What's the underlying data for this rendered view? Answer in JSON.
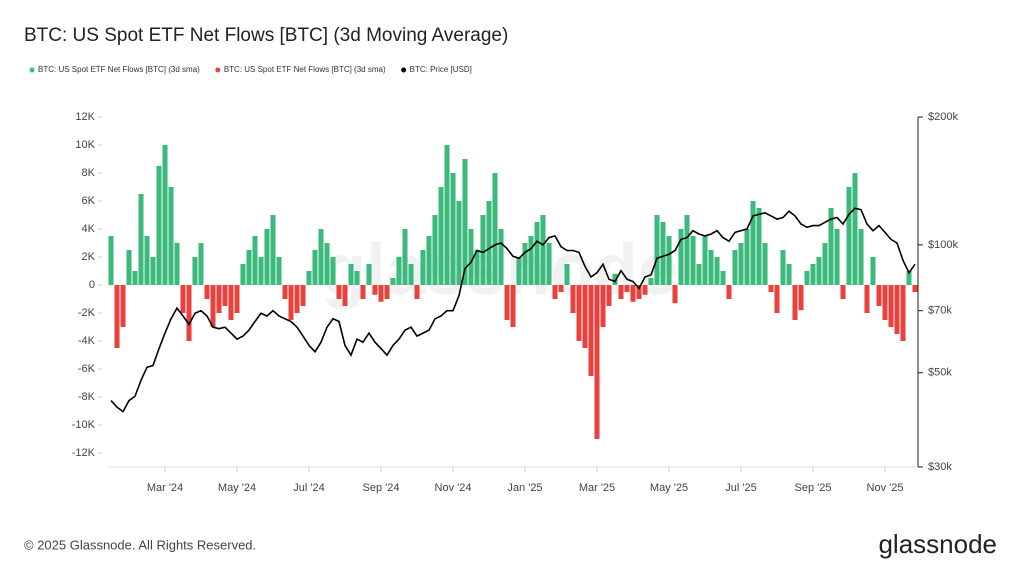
{
  "chart_data": {
    "type": "bar",
    "title": "BTC: US Spot ETF Net Flows [BTC] (3d Moving Average)",
    "watermark": "glassnode",
    "footer": "© 2025 Glassnode. All Rights Reserved.",
    "brand": "glassnode",
    "categories": [
      null,
      null,
      null,
      null,
      null,
      null,
      null,
      null,
      null,
      null,
      null,
      null,
      null,
      null,
      null,
      null,
      null,
      null,
      null,
      null,
      null,
      null,
      null,
      null,
      null,
      null,
      null,
      null,
      null,
      null,
      null,
      null,
      null,
      null,
      null,
      null,
      null,
      null,
      null,
      null,
      null,
      null,
      null,
      null,
      null,
      null,
      null,
      null,
      null,
      null,
      null,
      null,
      null,
      null,
      null,
      null,
      null,
      null,
      null,
      null,
      null,
      null,
      null,
      null,
      null,
      null,
      null,
      null,
      null,
      null,
      null,
      null,
      null,
      null,
      null,
      null,
      null,
      null,
      null,
      null,
      null,
      null,
      null,
      null,
      null,
      null,
      null,
      null,
      null,
      null,
      null,
      null,
      null,
      null,
      null,
      null,
      null,
      null,
      null,
      null,
      null,
      null,
      null,
      null,
      null,
      null,
      null,
      null,
      null,
      null,
      null,
      null,
      null,
      null,
      null,
      null,
      null,
      null,
      null,
      null,
      null,
      null,
      null,
      null,
      null,
      null,
      null,
      null,
      null,
      null,
      null,
      null,
      null,
      null,
      null
    ],
    "xticks": [
      {
        "value": 9,
        "label": "Mar '24"
      },
      {
        "value": 21,
        "label": "May '24"
      },
      {
        "value": 33,
        "label": "Jul '24"
      },
      {
        "value": 45,
        "label": "Sep '24"
      },
      {
        "value": 57,
        "label": "Nov '24"
      },
      {
        "value": 69,
        "label": "Jan '25"
      },
      {
        "value": 81,
        "label": "Mar '25"
      },
      {
        "value": 93,
        "label": "May '25"
      },
      {
        "value": 105,
        "label": "Jul '25"
      },
      {
        "value": 117,
        "label": "Sep '25"
      },
      {
        "value": 129,
        "label": "Nov '25"
      }
    ],
    "ylim": [
      -13000,
      12000
    ],
    "yticks": [
      {
        "value": 12000,
        "label": "12K"
      },
      {
        "value": 10000,
        "label": "10K"
      },
      {
        "value": 8000,
        "label": "8K"
      },
      {
        "value": 6000,
        "label": "6K"
      },
      {
        "value": 4000,
        "label": "4K"
      },
      {
        "value": 2000,
        "label": "2K"
      },
      0,
      {
        "value": -2000,
        "label": "-2K"
      },
      {
        "value": -4000,
        "label": "-4K"
      },
      {
        "value": -6000,
        "label": "-6K"
      },
      {
        "value": -8000,
        "label": "-8K"
      },
      {
        "value": -10000,
        "label": "-10K"
      },
      {
        "value": -12000,
        "label": "-12K"
      }
    ],
    "y2lim": [
      30000,
      200000
    ],
    "y2ticks": [
      {
        "value": 200000,
        "label": "$200k"
      },
      {
        "value": 100000,
        "label": "$100k"
      },
      {
        "value": 70000,
        "label": "$70k"
      },
      {
        "value": 50000,
        "label": "$50k"
      },
      {
        "value": 30000,
        "label": "$30k"
      }
    ],
    "y2log": true,
    "series": [
      {
        "name": "BTC: US Spot ETF Net Flows [BTC] (3d sma)",
        "color": "#3cba7c",
        "values": [
          3500,
          null,
          null,
          2500,
          1000,
          6500,
          3500,
          2000,
          8500,
          10000,
          7000,
          3000,
          null,
          null,
          2000,
          3000,
          null,
          null,
          null,
          null,
          null,
          null,
          1500,
          2500,
          3500,
          2000,
          4000,
          5000,
          2000,
          null,
          null,
          null,
          null,
          1000,
          2500,
          4000,
          3000,
          2000,
          null,
          null,
          1500,
          1000,
          null,
          1500,
          null,
          null,
          null,
          500,
          2000,
          4000,
          1500,
          null,
          2500,
          3500,
          5000,
          7000,
          10000,
          8000,
          6000,
          9000,
          4000,
          2500,
          5000,
          6000,
          8000,
          4000,
          null,
          null,
          2000,
          3000,
          3500,
          4500,
          5000,
          3000,
          null,
          null,
          1500,
          null,
          null,
          null,
          null,
          null,
          null,
          null,
          800,
          null,
          null,
          null,
          null,
          null,
          500,
          5000,
          4500,
          3500,
          null,
          4000,
          5000,
          3500,
          1500,
          3500,
          2500,
          2000,
          1000,
          null,
          2500,
          3000,
          4000,
          6000,
          5500,
          3000,
          null,
          null,
          2500,
          1500,
          null,
          null,
          1000,
          1500,
          2000,
          3000,
          5500,
          4000,
          null,
          7000,
          8000,
          4000,
          null,
          2000,
          null,
          null,
          null,
          null,
          null,
          1000,
          null
        ]
      },
      {
        "name": "BTC: US Spot ETF Net Flows [BTC] (3d sma)",
        "color": "#e8413e",
        "values": [
          null,
          -4500,
          -3000,
          null,
          null,
          null,
          null,
          null,
          null,
          null,
          null,
          null,
          -2000,
          -4000,
          null,
          null,
          -1000,
          -3000,
          -2000,
          -1500,
          -2500,
          -2000,
          null,
          null,
          null,
          null,
          null,
          null,
          null,
          -1000,
          -2500,
          -2000,
          -1500,
          null,
          null,
          null,
          null,
          null,
          -1000,
          -1500,
          null,
          null,
          -1000,
          null,
          -700,
          -1200,
          -1000,
          null,
          null,
          null,
          null,
          -1000,
          null,
          null,
          null,
          null,
          null,
          null,
          null,
          null,
          null,
          null,
          null,
          null,
          null,
          null,
          -2500,
          -3000,
          null,
          null,
          null,
          null,
          null,
          null,
          -1000,
          -500,
          null,
          -2000,
          -4000,
          -4500,
          -6500,
          -11000,
          -3000,
          -1500,
          null,
          -1000,
          -500,
          -1200,
          -1000,
          -700,
          null,
          null,
          null,
          null,
          -1300,
          null,
          null,
          null,
          null,
          null,
          null,
          null,
          null,
          -1000,
          null,
          null,
          null,
          null,
          null,
          null,
          -500,
          -2000,
          null,
          null,
          -2500,
          -1800,
          null,
          null,
          null,
          null,
          null,
          null,
          -1000,
          null,
          null,
          null,
          -2000,
          null,
          -1500,
          -2500,
          -3000,
          -3500,
          -4000,
          null,
          -500
        ]
      },
      {
        "name": "BTC: Price [USD]",
        "color": "#000000",
        "axis": "y2",
        "values": [
          43000,
          41500,
          40500,
          43000,
          44000,
          48000,
          51500,
          52000,
          57000,
          62000,
          67000,
          71000,
          68000,
          65000,
          69000,
          70000,
          68000,
          64000,
          63500,
          64000,
          62000,
          60000,
          61000,
          63000,
          66000,
          69000,
          68000,
          70000,
          68000,
          67000,
          66000,
          64000,
          61000,
          58000,
          56000,
          59000,
          64000,
          67000,
          66000,
          58000,
          55000,
          60000,
          59000,
          62000,
          59000,
          57000,
          55000,
          58000,
          60000,
          63000,
          64000,
          61000,
          62000,
          63000,
          67000,
          68000,
          70000,
          70000,
          76000,
          88000,
          91000,
          97000,
          96000,
          98000,
          100000,
          101000,
          98000,
          94000,
          93000,
          96000,
          98000,
          102000,
          100000,
          104000,
          105000,
          99000,
          97000,
          97000,
          96000,
          89000,
          84000,
          86000,
          90000,
          83000,
          82000,
          87000,
          83000,
          82000,
          79000,
          84000,
          85000,
          93000,
          94000,
          95000,
          97000,
          103000,
          104000,
          108000,
          106000,
          105000,
          106000,
          108000,
          104000,
          102000,
          107000,
          108000,
          109000,
          117000,
          118000,
          119000,
          117000,
          115000,
          116000,
          120000,
          117000,
          112000,
          110000,
          111000,
          111000,
          113000,
          115000,
          116000,
          112000,
          118000,
          122000,
          121000,
          112000,
          108000,
          111000,
          107000,
          103000,
          101000,
          92000,
          86000,
          90000
        ]
      }
    ]
  }
}
